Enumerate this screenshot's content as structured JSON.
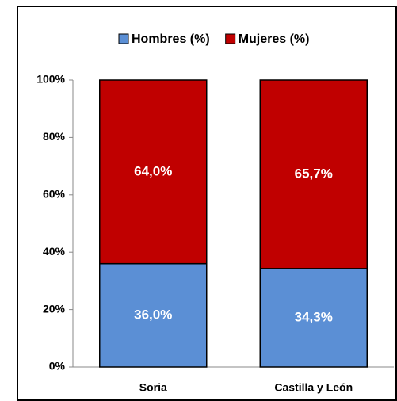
{
  "chart_data": {
    "type": "stacked_bar",
    "categories": [
      "Soria",
      "Castilla y León"
    ],
    "series": [
      {
        "name": "Hombres (%)",
        "color": "#5b8fd5",
        "values": [
          36.0,
          34.3
        ],
        "value_labels": [
          "36,0%",
          "34,3%"
        ]
      },
      {
        "name": "Mujeres (%)",
        "color": "#c00000",
        "values": [
          64.0,
          65.7
        ],
        "value_labels": [
          "64,0%",
          "65,7%"
        ]
      }
    ],
    "ylim": [
      0,
      100
    ],
    "yticks": [
      {
        "value": 0,
        "label": "0%"
      },
      {
        "value": 20,
        "label": "20%"
      },
      {
        "value": 40,
        "label": "40%"
      },
      {
        "value": 60,
        "label": "60%"
      },
      {
        "value": 80,
        "label": "80%"
      },
      {
        "value": 100,
        "label": "100%"
      }
    ],
    "legend": "top"
  }
}
